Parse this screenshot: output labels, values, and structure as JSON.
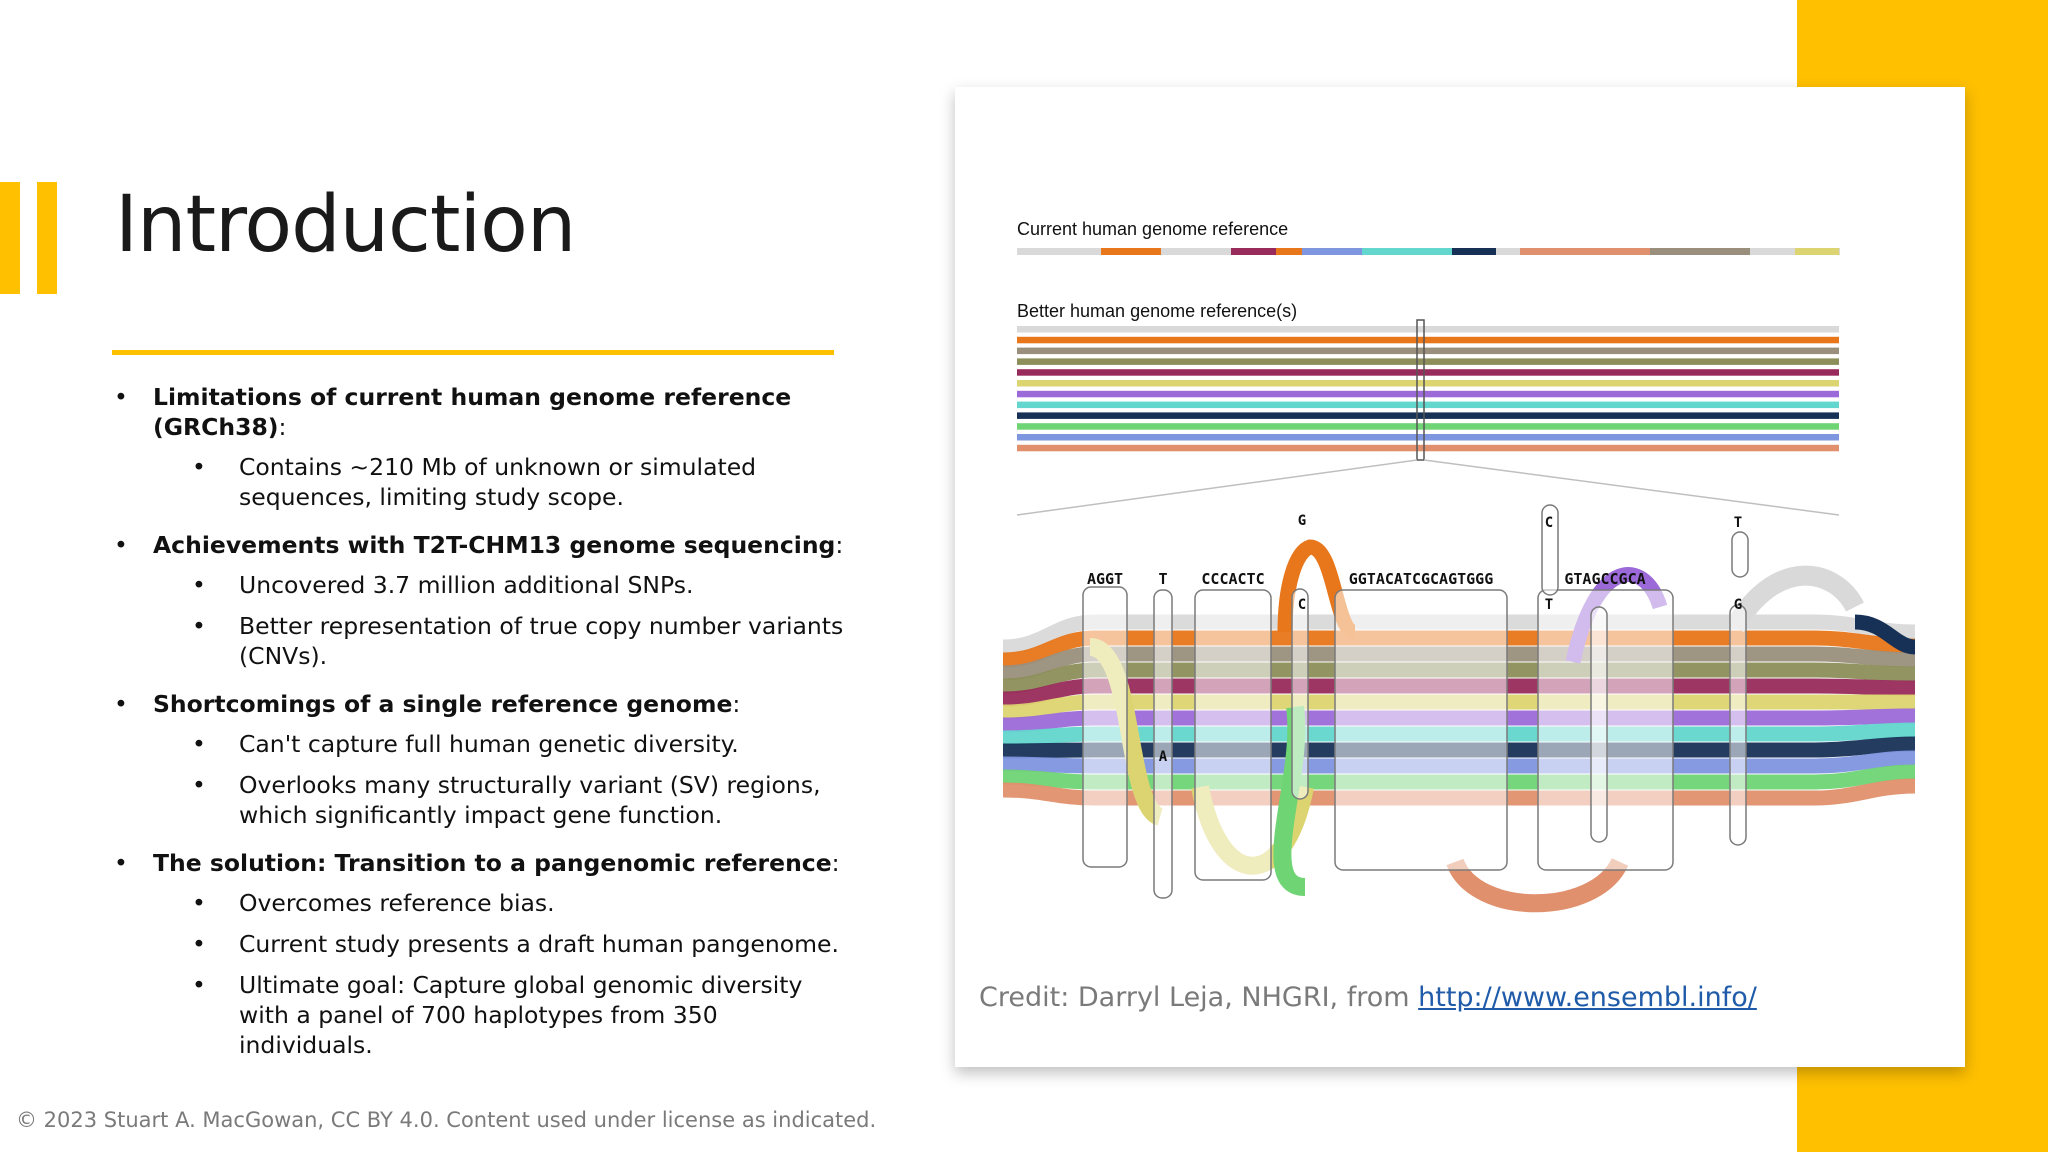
{
  "slide": {
    "title": "Introduction",
    "bullets": [
      {
        "bold": "Limitations of current human genome reference (GRCh38)",
        "tail": ":",
        "subs": [
          "Contains ~210 Mb of unknown or simulated sequences, limiting study scope."
        ]
      },
      {
        "bold": "Achievements with T2T-CHM13 genome sequencing",
        "tail": ":",
        "subs": [
          "Uncovered 3.7 million additional SNPs.",
          "Better representation of true copy number variants (CNVs)."
        ]
      },
      {
        "bold": "Shortcomings of a single reference genome",
        "tail": ":",
        "subs": [
          "Can't capture full human genetic diversity.",
          "Overlooks many structurally variant (SV) regions, which significantly impact gene function."
        ]
      },
      {
        "bold": "The solution: Transition to a pangenomic reference",
        "tail": ":",
        "subs": [
          "Overcomes reference bias.",
          "Current study presents a draft human pangenome.",
          "Ultimate goal: Capture global genomic diversity with a panel of 700 haplotypes from 350 individuals."
        ]
      }
    ],
    "bullet_glyph": "•",
    "footer": "© 2023 Stuart A. MacGowan, CC BY 4.0. Content used under license as indicated."
  },
  "figure": {
    "label_current": "Current human genome reference",
    "label_better": "Better human genome reference(s)",
    "sequences": [
      "AGGT",
      "T",
      "CCCACTC",
      "GGTACATCGCAGTGGG",
      "GTAGCCGCA"
    ],
    "variant_letters": [
      "A",
      "G",
      "C",
      "C",
      "T",
      "T",
      "G"
    ],
    "credit_prefix": "Credit: Darryl Leja, NHGRI, from ",
    "credit_link": "http://www.ensembl.info/"
  },
  "colors": {
    "accent": "#FFC000",
    "link": "#1f5ba8",
    "tracks": [
      "#d9d9d9",
      "#e8761a",
      "#9a8f7c",
      "#8c8f5a",
      "#992b5c",
      "#dcd470",
      "#9b6ad8",
      "#63d6cd",
      "#173156",
      "#7e95df",
      "#6fd474",
      "#e0906c"
    ]
  }
}
